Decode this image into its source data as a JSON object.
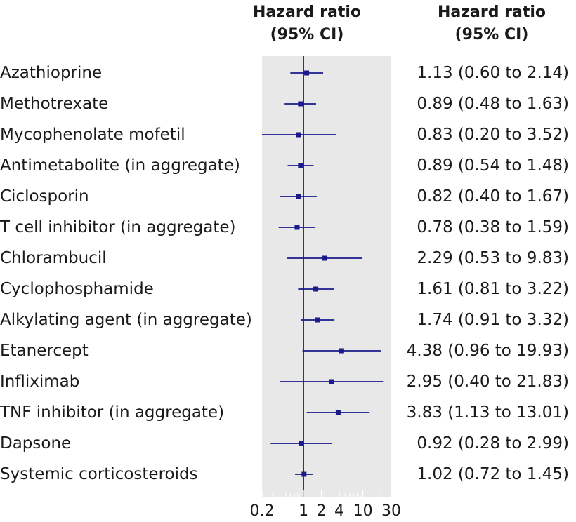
{
  "header": {
    "left_line1": "Hazard ratio",
    "left_line2": "(95% CI)",
    "right_line1": "Hazard ratio",
    "right_line2": "(95% CI)"
  },
  "colors": {
    "panel": "#e8e8e8",
    "marker": "#1a1a8c",
    "text": "#1a1a1a"
  },
  "chart_data": {
    "type": "forest",
    "scale": "log",
    "xlim": [
      0.2,
      30
    ],
    "reference_line": 1,
    "x_ticks": [
      0.2,
      1,
      2,
      4,
      10,
      30
    ],
    "x_tick_labels": [
      "0.2",
      "1",
      "2",
      "4",
      "10",
      "30"
    ],
    "rows": [
      {
        "label": "Azathioprine",
        "hr": 1.13,
        "lo": 0.6,
        "hi": 2.14,
        "text": "1.13 (0.60 to 2.14)"
      },
      {
        "label": "Methotrexate",
        "hr": 0.89,
        "lo": 0.48,
        "hi": 1.63,
        "text": "0.89 (0.48 to 1.63)"
      },
      {
        "label": "Mycophenolate mofetil",
        "hr": 0.83,
        "lo": 0.2,
        "hi": 3.52,
        "text": "0.83 (0.20 to 3.52)"
      },
      {
        "label": "Antimetabolite (in aggregate)",
        "hr": 0.89,
        "lo": 0.54,
        "hi": 1.48,
        "text": "0.89 (0.54 to 1.48)"
      },
      {
        "label": "Ciclosporin",
        "hr": 0.82,
        "lo": 0.4,
        "hi": 1.67,
        "text": "0.82 (0.40 to 1.67)"
      },
      {
        "label": "T cell inhibitor (in aggregate)",
        "hr": 0.78,
        "lo": 0.38,
        "hi": 1.59,
        "text": "0.78 (0.38 to 1.59)"
      },
      {
        "label": "Chlorambucil",
        "hr": 2.29,
        "lo": 0.53,
        "hi": 9.83,
        "text": "2.29 (0.53 to 9.83)"
      },
      {
        "label": "Cyclophosphamide",
        "hr": 1.61,
        "lo": 0.81,
        "hi": 3.22,
        "text": "1.61 (0.81 to 3.22)"
      },
      {
        "label": "Alkylating agent (in aggregate)",
        "hr": 1.74,
        "lo": 0.91,
        "hi": 3.32,
        "text": "1.74 (0.91 to 3.32)"
      },
      {
        "label": "Etanercept",
        "hr": 4.38,
        "lo": 0.96,
        "hi": 19.93,
        "text": "4.38 (0.96 to 19.93)"
      },
      {
        "label": "Infliximab",
        "hr": 2.95,
        "lo": 0.4,
        "hi": 21.83,
        "text": "2.95 (0.40 to 21.83)"
      },
      {
        "label": "TNF inhibitor (in aggregate)",
        "hr": 3.83,
        "lo": 1.13,
        "hi": 13.01,
        "text": "3.83 (1.13 to 13.01)"
      },
      {
        "label": "Dapsone",
        "hr": 0.92,
        "lo": 0.28,
        "hi": 2.99,
        "text": "0.92 (0.28 to 2.99)"
      },
      {
        "label": "Systemic corticosteroids",
        "hr": 1.02,
        "lo": 0.72,
        "hi": 1.45,
        "text": "1.02 (0.72 to 1.45)"
      }
    ]
  }
}
